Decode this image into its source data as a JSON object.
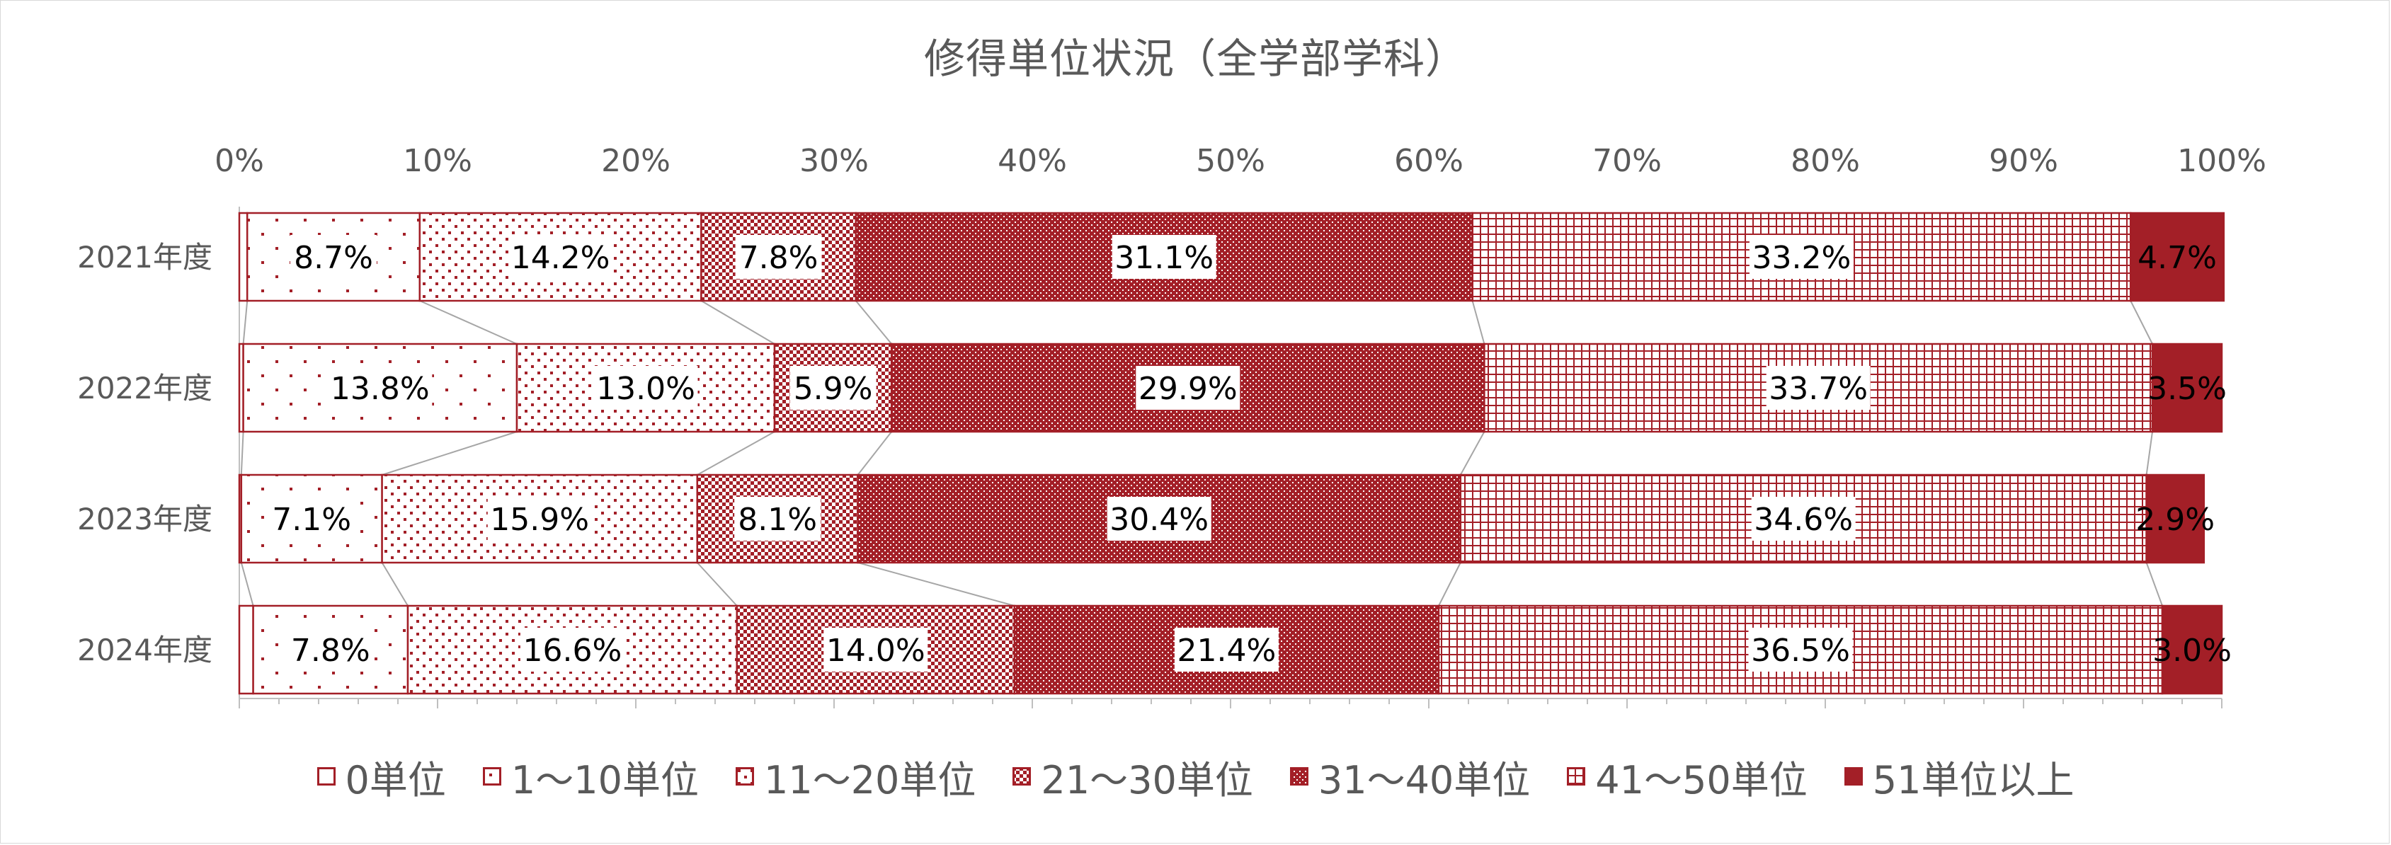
{
  "chart_data": {
    "type": "bar",
    "orientation": "horizontal",
    "stacked": "percent",
    "title": "修得単位状況（全学部学科）",
    "categories": [
      "2021年度",
      "2022年度",
      "2023年度",
      "2024年度"
    ],
    "series": [
      {
        "name": "0単位",
        "values": [
          0.4,
          0.2,
          0.1,
          0.7
        ],
        "labels": [
          "",
          "",
          "",
          ""
        ]
      },
      {
        "name": "1～10単位",
        "values": [
          8.7,
          13.8,
          7.1,
          7.8
        ],
        "labels": [
          "8.7%",
          "13.8%",
          "7.1%",
          "7.8%"
        ]
      },
      {
        "name": "11～20単位",
        "values": [
          14.2,
          13.0,
          15.9,
          16.6
        ],
        "labels": [
          "14.2%",
          "13.0%",
          "15.9%",
          "16.6%"
        ]
      },
      {
        "name": "21～30単位",
        "values": [
          7.8,
          5.9,
          8.1,
          14.0
        ],
        "labels": [
          "7.8%",
          "5.9%",
          "8.1%",
          "14.0%"
        ]
      },
      {
        "name": "31～40単位",
        "values": [
          31.1,
          29.9,
          30.4,
          21.4
        ],
        "labels": [
          "31.1%",
          "29.9%",
          "30.4%",
          "21.4%"
        ]
      },
      {
        "name": "41～50単位",
        "values": [
          33.2,
          33.7,
          34.6,
          36.5
        ],
        "labels": [
          "33.2%",
          "33.7%",
          "34.6%",
          "36.5%"
        ]
      },
      {
        "name": "51単位以上",
        "values": [
          4.7,
          3.5,
          2.9,
          3.0
        ],
        "labels": [
          "4.7%",
          "3.5%",
          "2.9%",
          "3.0%"
        ]
      }
    ],
    "xlim": [
      0,
      100
    ],
    "x_ticks": [
      "0%",
      "10%",
      "20%",
      "30%",
      "40%",
      "50%",
      "60%",
      "70%",
      "80%",
      "90%",
      "100%"
    ],
    "legend_position": "bottom",
    "series_lines": true,
    "grid": false,
    "colors": {
      "accent": "#a31f27",
      "text": "#595959",
      "connector": "#a6a6a6"
    }
  }
}
